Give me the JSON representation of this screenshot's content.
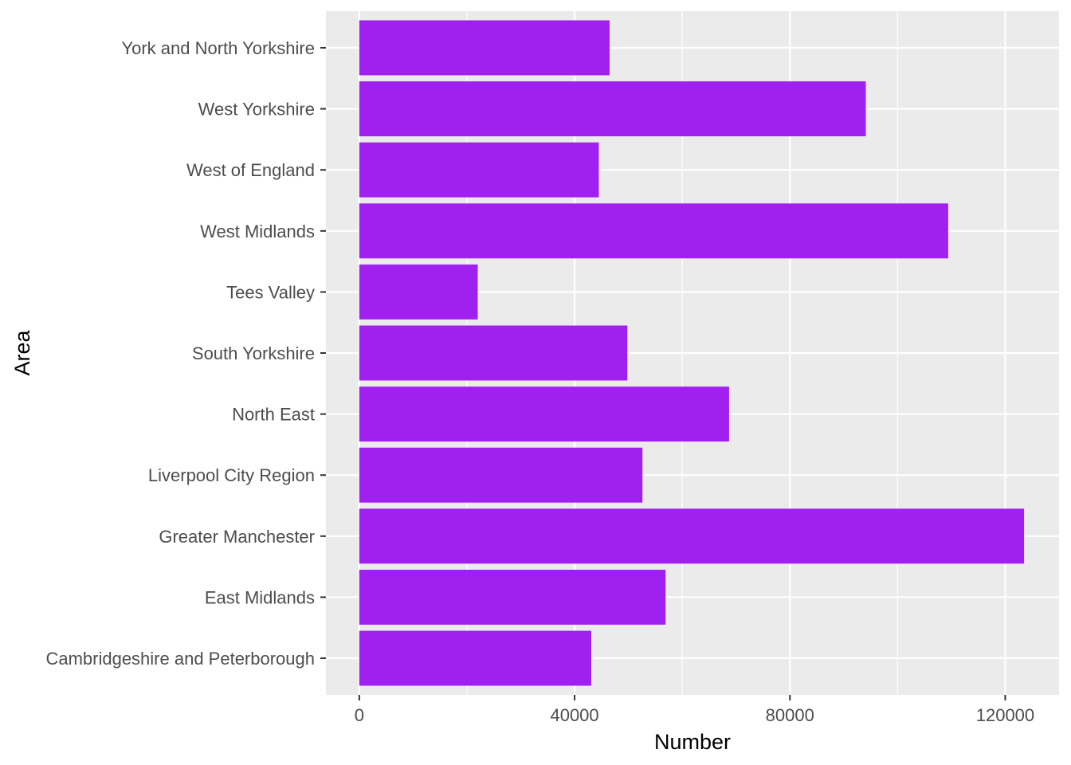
{
  "chart_data": {
    "type": "bar",
    "orientation": "horizontal",
    "xlabel": "Number",
    "ylabel": "Area",
    "categories": [
      "York and North Yorkshire",
      "West Yorkshire",
      "West of England",
      "West Midlands",
      "Tees Valley",
      "South Yorkshire",
      "North East",
      "Liverpool City Region",
      "Greater Manchester",
      "East Midlands",
      "Cambridgeshire and Peterborough"
    ],
    "values": [
      46500,
      94100,
      44500,
      109400,
      22000,
      49800,
      68700,
      52600,
      123500,
      56900,
      43100
    ],
    "xticks": [
      0,
      40000,
      80000,
      120000
    ],
    "xtick_labels": [
      "0",
      "40000",
      "80000",
      "120000"
    ],
    "xlim": [
      -6200,
      130000
    ],
    "grid": true,
    "colors": {
      "bar": "#a020f0",
      "panel": "#ebebeb",
      "grid": "#ffffff"
    }
  }
}
